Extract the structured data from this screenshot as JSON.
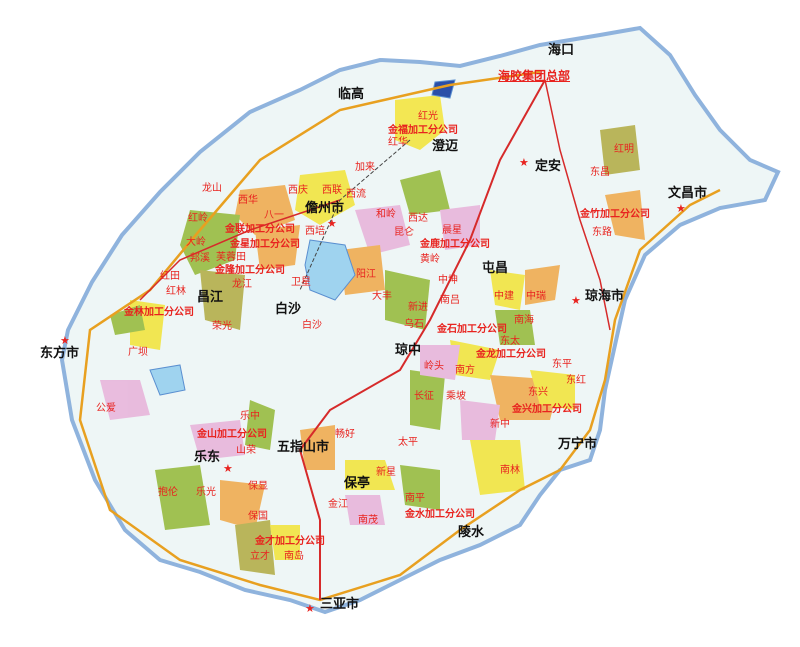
{
  "map": {
    "colors": {
      "sea": "#ffffff",
      "land": "#eef6f6",
      "coast": "#8fb3dd",
      "road_main": "#d62a2a",
      "expressway": "#e8a020",
      "railway": "#444444",
      "water": "#9fd3ef",
      "farm_yellow": "#f2e64a",
      "farm_orange": "#f0b05a",
      "farm_green": "#9cbf4a",
      "farm_olive": "#b7b253",
      "farm_pink": "#e8b8dc"
    },
    "headquarters": "海胶集团总部",
    "cities": [
      "海口",
      "临高",
      "澄迈",
      "定安",
      "文昌市",
      "儋州市",
      "屯昌",
      "琼海市",
      "昌江",
      "白沙",
      "琼中",
      "东方市",
      "乐东",
      "五指山市",
      "万宁市",
      "保亭",
      "陵水",
      "三亚市"
    ],
    "companies": [
      "金福加工分公司",
      "金星加工分公司",
      "金隆加工分公司",
      "金鹿加工分公司",
      "金林加工分公司",
      "金石加工分公司",
      "金兴加工分公司",
      "金竹加工分公司",
      "金山加工分公司",
      "金才加工分公司",
      "金水加工分公司",
      "金龙加工分公司",
      "金联加工分公司"
    ],
    "farms": [
      "红光",
      "红华",
      "西庆",
      "西联",
      "西流",
      "加来",
      "西华",
      "龙山",
      "八一",
      "西培",
      "红岭",
      "大岭",
      "龙江",
      "卫星",
      "红田",
      "红林",
      "邦溪",
      "荣光",
      "芙蓉田",
      "白沙",
      "和岭",
      "昆仑",
      "西达",
      "晨星",
      "黄岭",
      "中坤",
      "阳江",
      "大丰",
      "南吕",
      "新进",
      "乌石",
      "中建",
      "中瑞",
      "南海",
      "东太",
      "东平",
      "东昌",
      "东兴",
      "东红",
      "南方",
      "岭头",
      "长征",
      "乘坡",
      "新中",
      "太平",
      "红明",
      "东路",
      "广坝",
      "公爱",
      "山荣",
      "乐中",
      "畅好",
      "抱伦",
      "乐光",
      "保国",
      "保显",
      "新星",
      "金江",
      "南茂",
      "南平",
      "立才",
      "南岛",
      "南林"
    ],
    "icons": [
      "city-star-icon",
      "farm-dot-icon",
      "company-dot-icon"
    ]
  }
}
